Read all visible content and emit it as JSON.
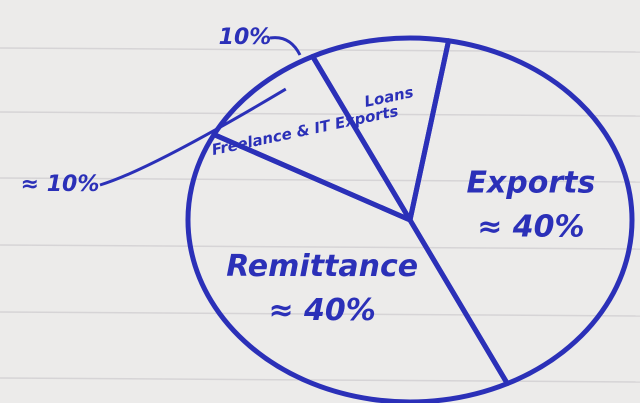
{
  "chart_data": {
    "type": "pie",
    "categories": [
      "Loans",
      "Freelance & IT Exports",
      "Remittance",
      "Exports"
    ],
    "values": [
      10,
      10,
      40,
      40
    ],
    "value_labels": [
      "10%",
      "≈ 10%",
      "≈ 40%",
      "≈ 40%"
    ],
    "color": "#2b30b8"
  }
}
